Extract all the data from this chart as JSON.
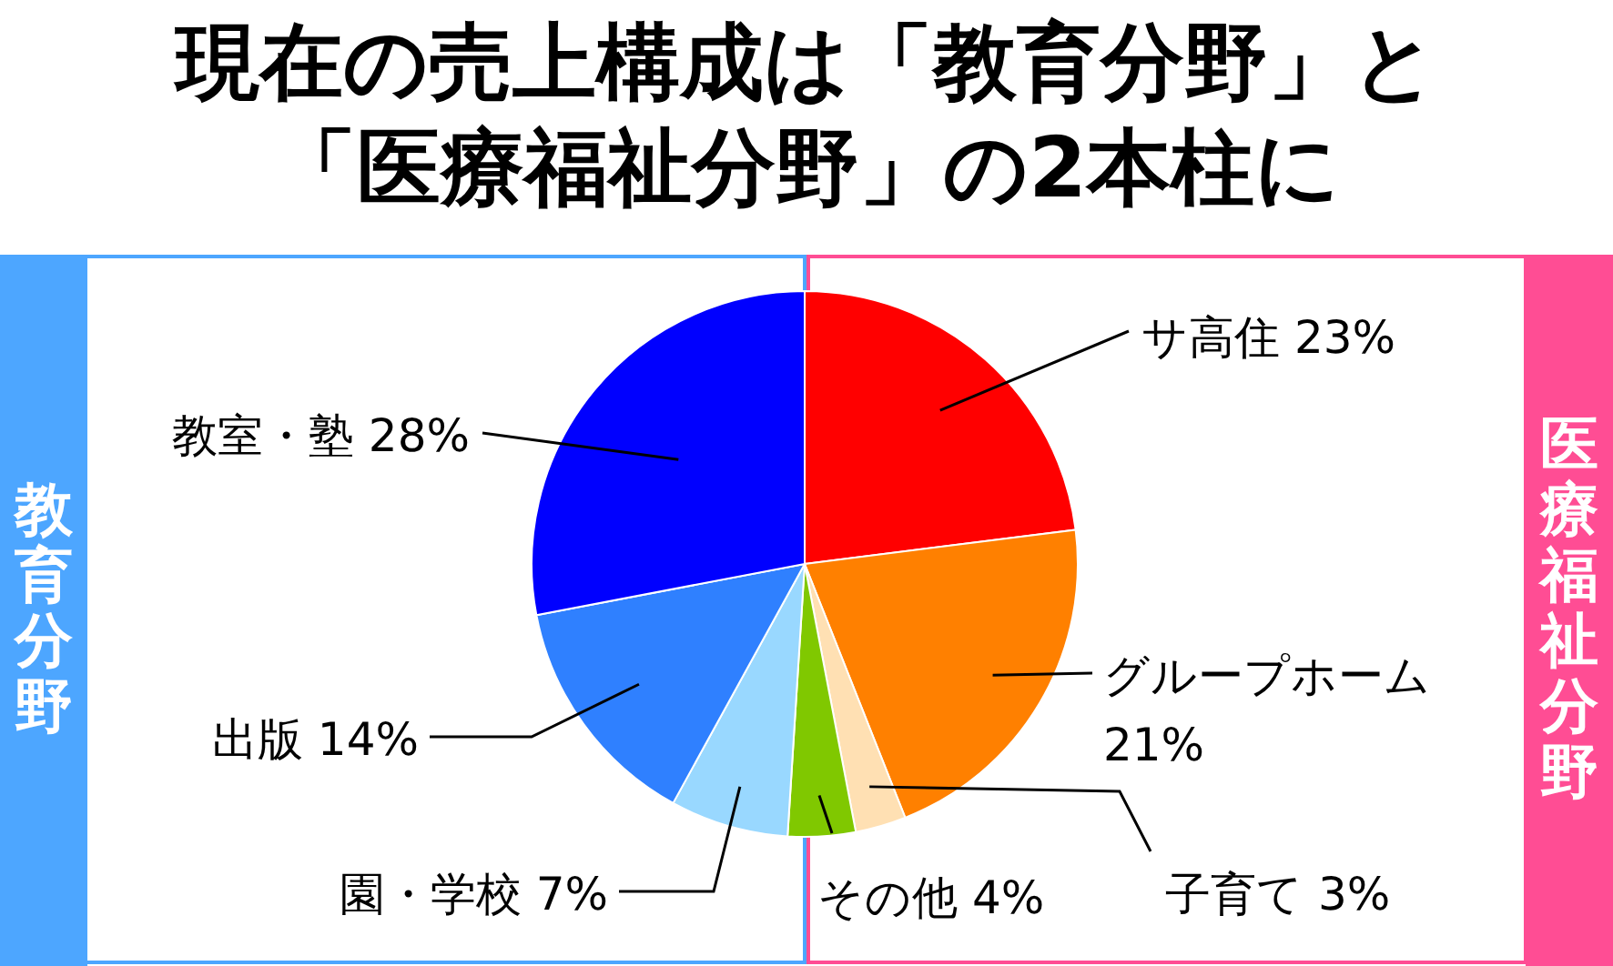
{
  "chart_data": {
    "type": "pie",
    "title": "現在の売上構成は「教育分野」と「医療福祉分野」の2本柱に",
    "categories": [
      "サ高住",
      "グループホーム",
      "子育て",
      "その他",
      "園・学校",
      "出版",
      "教室・塾"
    ],
    "values": [
      23,
      21,
      3,
      4,
      7,
      14,
      28
    ],
    "colors": [
      "#ff0000",
      "#ff8000",
      "#ffe0b3",
      "#80c800",
      "#99d8ff",
      "#2f80ff",
      "#0000ff"
    ],
    "value_labels": [
      "23%",
      "21%",
      "3%",
      "4%",
      "7%",
      "14%",
      "28%"
    ],
    "annotations": [
      "教育分野",
      "医療福祉分野"
    ]
  }
}
